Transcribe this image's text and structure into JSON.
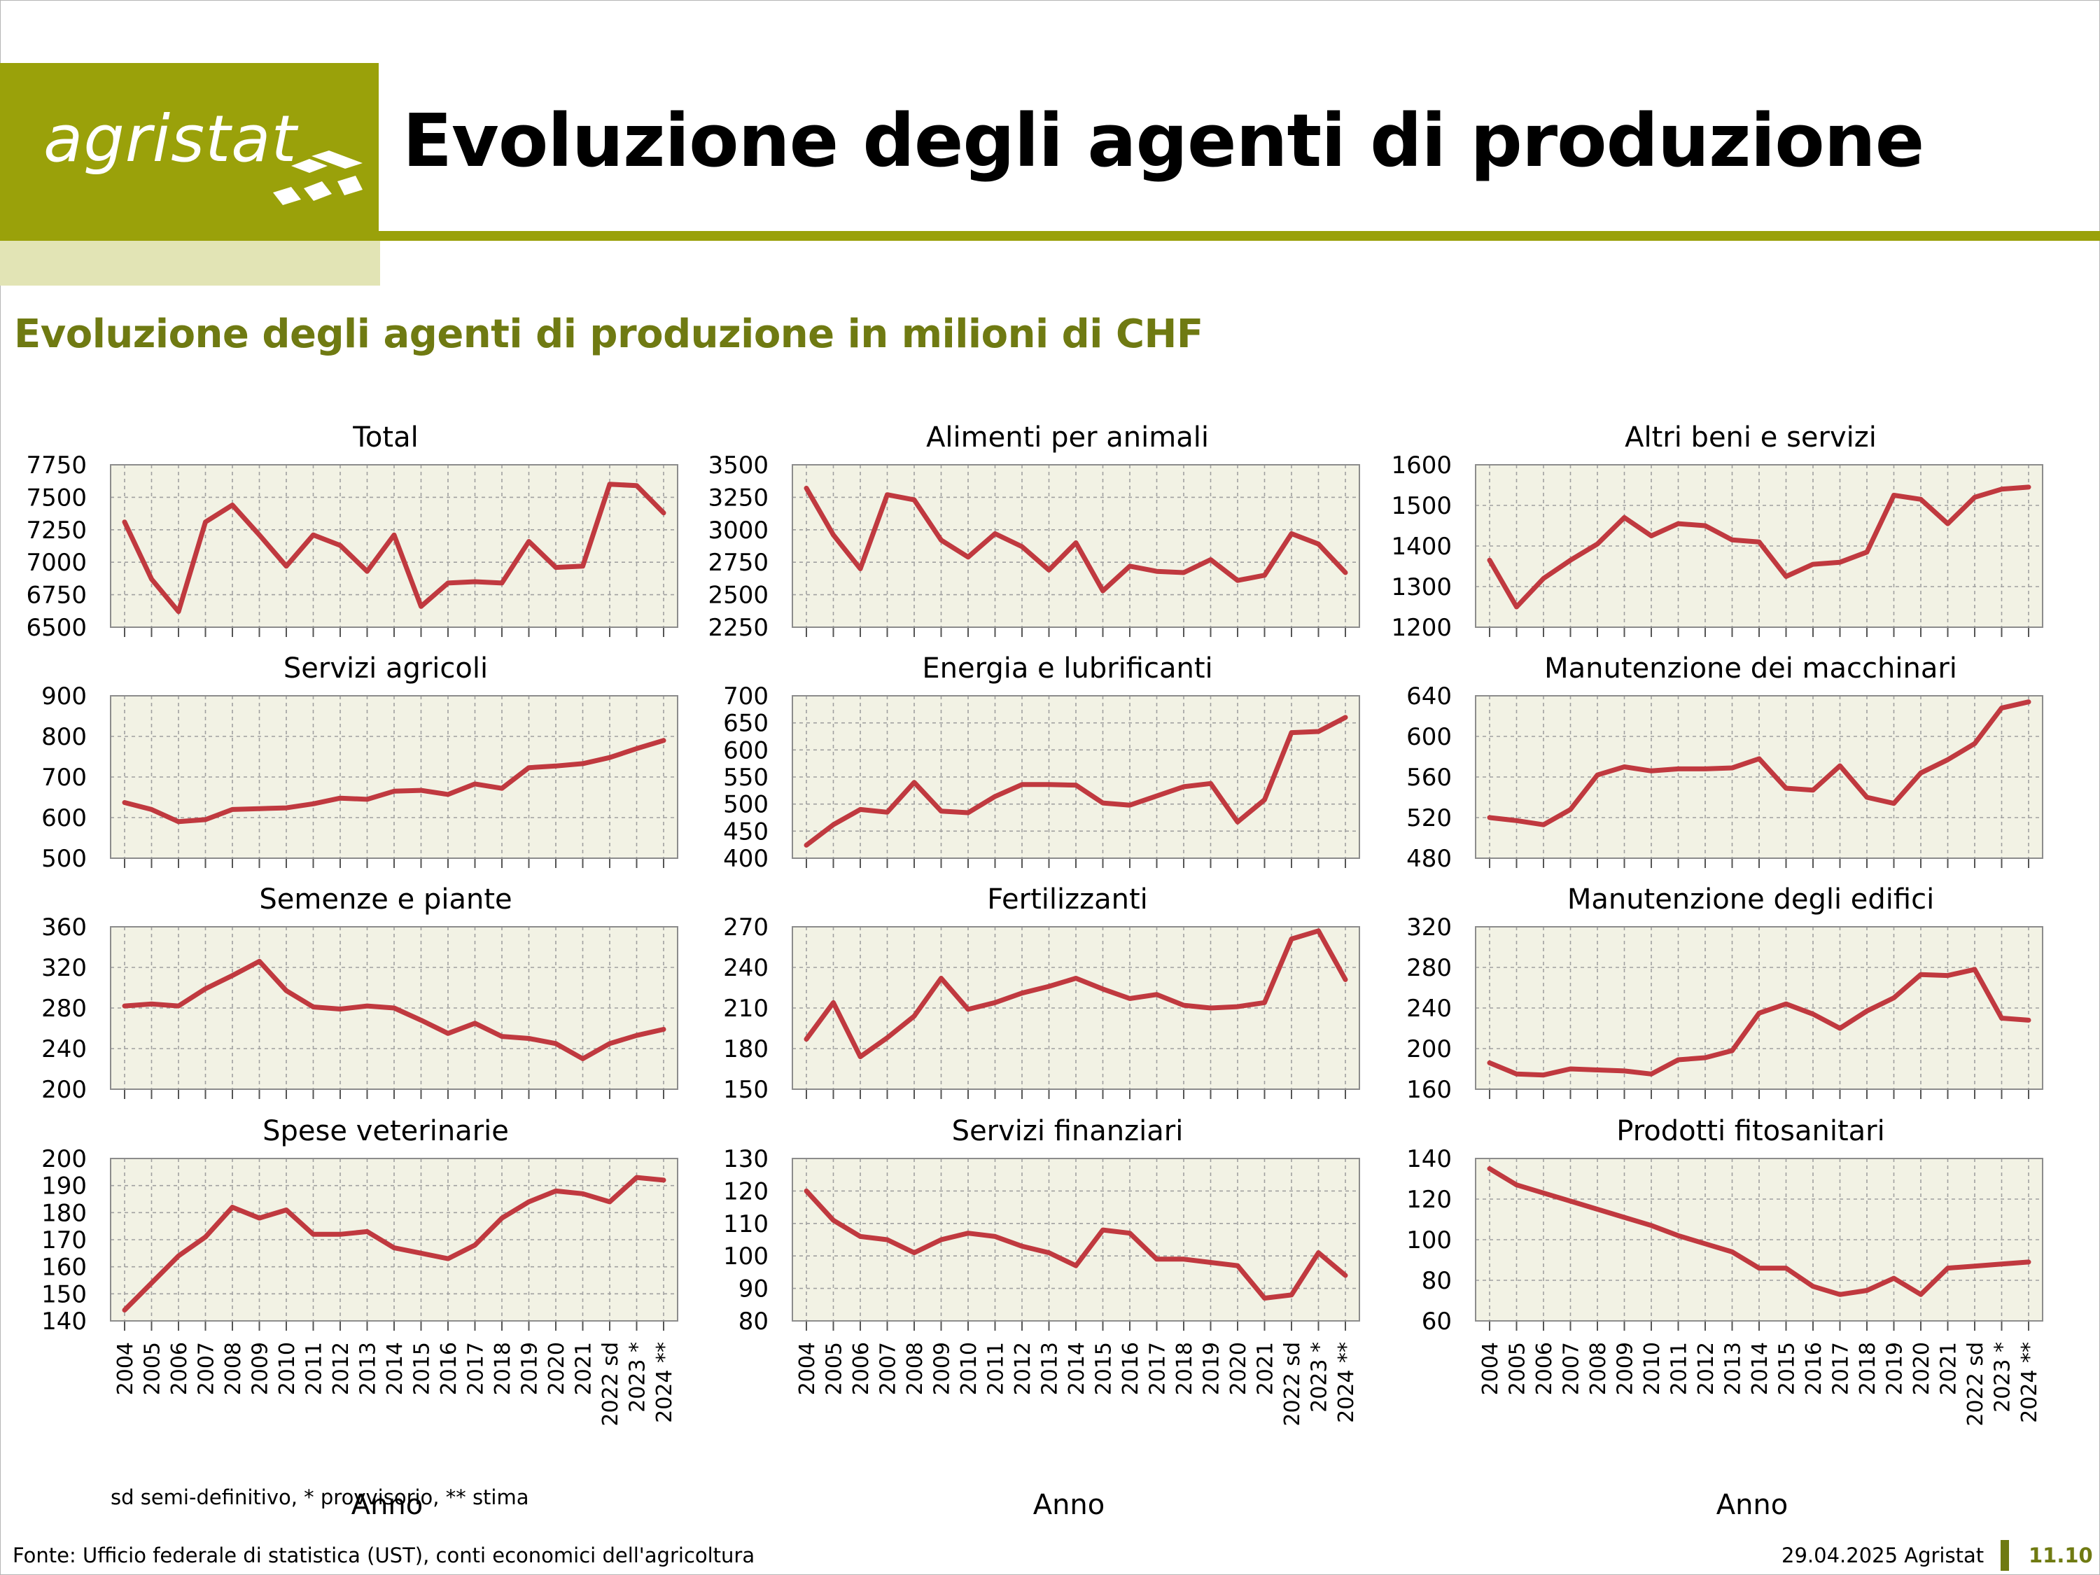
{
  "header": {
    "logo_text": "agristat",
    "title": "Evoluzione degli agenti di produzione",
    "subtitle": "Evoluzione degli agenti di produzione in milioni di CHF"
  },
  "colors": {
    "brand": "#9aa10a",
    "brand_pale": "#e2e4b5",
    "subtitle": "#6f7a12",
    "series": "#c0393f",
    "plot_bg": "#f2f2e4"
  },
  "footer": {
    "footnote": "sd semi-definitivo, * provvisorio, ** stima",
    "source": "Fonte: Ufficio federale di statistica (UST), conti economici dell'agricoltura",
    "date": "29.04.2025 Agristat",
    "page": "11.10"
  },
  "x_categories": [
    "2004",
    "2005",
    "2006",
    "2007",
    "2008",
    "2009",
    "2010",
    "2011",
    "2012",
    "2013",
    "2014",
    "2015",
    "2016",
    "2017",
    "2018",
    "2019",
    "2020",
    "2021",
    "2022 sd",
    "2023 *",
    "2024 **"
  ],
  "xlabel": "Anno",
  "chart_data": [
    {
      "type": "line",
      "title": "Total",
      "ylim": [
        6500,
        7750
      ],
      "yticks": [
        6500,
        6750,
        7000,
        7250,
        7500,
        7750
      ],
      "values": [
        7310,
        6870,
        6620,
        7310,
        7440,
        7210,
        6970,
        7210,
        7130,
        6930,
        7210,
        6660,
        6840,
        6850,
        6840,
        7160,
        6960,
        6970,
        7600,
        7590,
        7380
      ]
    },
    {
      "type": "line",
      "title": "Alimenti per animali",
      "ylim": [
        2250,
        3500
      ],
      "yticks": [
        2250,
        2500,
        2750,
        3000,
        3250,
        3500
      ],
      "values": [
        3320,
        2960,
        2700,
        3270,
        3230,
        2920,
        2790,
        2970,
        2870,
        2690,
        2900,
        2530,
        2720,
        2680,
        2670,
        2770,
        2610,
        2650,
        2970,
        2890,
        2670
      ]
    },
    {
      "type": "line",
      "title": "Altri beni e servizi",
      "ylim": [
        1200,
        1600
      ],
      "yticks": [
        1200,
        1300,
        1400,
        1500,
        1600
      ],
      "values": [
        1365,
        1250,
        1320,
        1365,
        1405,
        1470,
        1425,
        1455,
        1450,
        1415,
        1410,
        1325,
        1355,
        1360,
        1385,
        1525,
        1515,
        1455,
        1520,
        1540,
        1545
      ]
    },
    {
      "type": "line",
      "title": "Servizi agricoli",
      "ylim": [
        500,
        900
      ],
      "yticks": [
        500,
        600,
        700,
        800,
        900
      ],
      "values": [
        637,
        620,
        590,
        595,
        620,
        622,
        624,
        634,
        648,
        645,
        665,
        667,
        657,
        683,
        672,
        723,
        727,
        733,
        748,
        770,
        790
      ]
    },
    {
      "type": "line",
      "title": "Energia e lubrificanti",
      "ylim": [
        400,
        700
      ],
      "yticks": [
        400,
        450,
        500,
        550,
        600,
        650,
        700
      ],
      "values": [
        424,
        462,
        490,
        485,
        540,
        487,
        484,
        514,
        536,
        536,
        535,
        502,
        498,
        515,
        532,
        538,
        467,
        508,
        632,
        634,
        660
      ]
    },
    {
      "type": "line",
      "title": "Manutenzione dei macchinari",
      "ylim": [
        480,
        640
      ],
      "yticks": [
        480,
        520,
        560,
        600,
        640
      ],
      "values": [
        520,
        517,
        513,
        528,
        562,
        570,
        566,
        568,
        568,
        569,
        578,
        549,
        547,
        571,
        540,
        534,
        564,
        577,
        593,
        628,
        634
      ]
    },
    {
      "type": "line",
      "title": "Semenze e piante",
      "ylim": [
        200,
        360
      ],
      "yticks": [
        200,
        240,
        280,
        320,
        360
      ],
      "values": [
        282,
        284,
        282,
        299,
        312,
        326,
        297,
        281,
        279,
        282,
        280,
        268,
        255,
        265,
        252,
        250,
        245,
        230,
        245,
        253,
        259
      ]
    },
    {
      "type": "line",
      "title": "Fertilizzanti",
      "ylim": [
        150,
        270
      ],
      "yticks": [
        150,
        180,
        210,
        240,
        270
      ],
      "values": [
        187,
        214,
        174,
        188,
        204,
        232,
        209,
        214,
        221,
        226,
        232,
        224,
        217,
        220,
        212,
        210,
        211,
        214,
        261,
        267,
        231
      ]
    },
    {
      "type": "line",
      "title": "Manutenzione degli edifici",
      "ylim": [
        160,
        320
      ],
      "yticks": [
        160,
        200,
        240,
        280,
        320
      ],
      "values": [
        186,
        175,
        174,
        180,
        179,
        178,
        175,
        189,
        191,
        198,
        235,
        244,
        234,
        220,
        237,
        250,
        273,
        272,
        278,
        230,
        228
      ]
    },
    {
      "type": "line",
      "title": "Spese veterinarie",
      "ylim": [
        140,
        200
      ],
      "yticks": [
        140,
        150,
        160,
        170,
        180,
        190,
        200
      ],
      "values": [
        144,
        154,
        164,
        171,
        182,
        178,
        181,
        172,
        172,
        173,
        167,
        165,
        163,
        168,
        178,
        184,
        188,
        187,
        184,
        193,
        192
      ]
    },
    {
      "type": "line",
      "title": "Servizi finanziari",
      "ylim": [
        80,
        130
      ],
      "yticks": [
        80,
        90,
        100,
        110,
        120,
        130
      ],
      "values": [
        120,
        111,
        106,
        105,
        101,
        105,
        107,
        106,
        103,
        101,
        97,
        108,
        107,
        99,
        99,
        98,
        97,
        87,
        88,
        101,
        94
      ]
    },
    {
      "type": "line",
      "title": "Prodotti fitosanitari",
      "ylim": [
        60,
        140
      ],
      "yticks": [
        60,
        80,
        100,
        120,
        140
      ],
      "values": [
        135,
        127,
        123,
        119,
        115,
        111,
        107,
        102,
        98,
        94,
        86,
        86,
        77,
        73,
        75,
        81,
        73,
        86,
        87,
        88,
        89
      ]
    }
  ]
}
